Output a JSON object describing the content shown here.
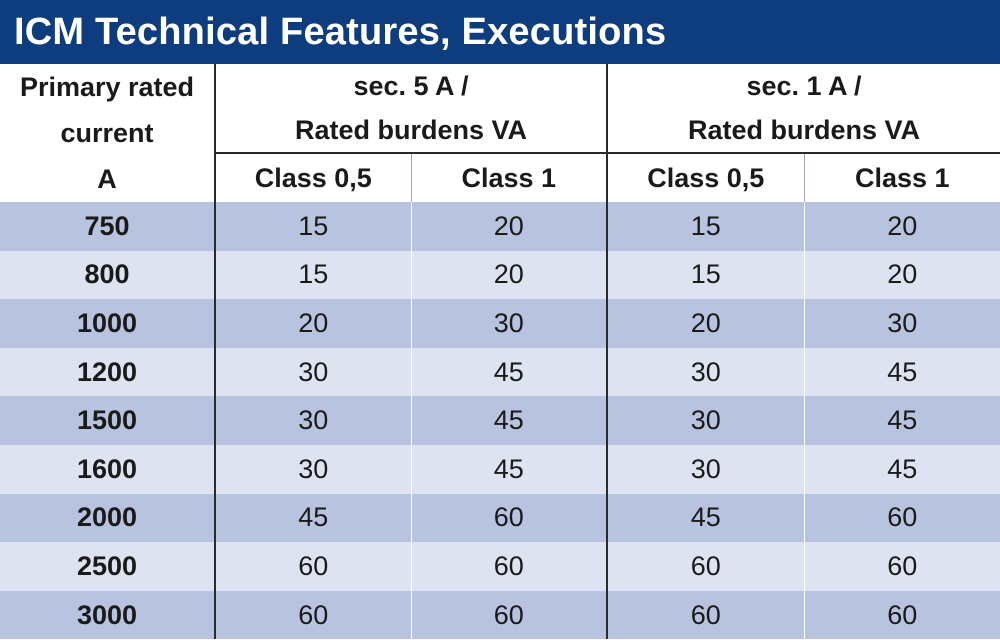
{
  "title": "ICM Technical Features, Executions",
  "header": {
    "primary_line1": "Primary rated",
    "primary_line2": "current",
    "primary_line3": "A",
    "group_5a_line1": "sec. 5 A /",
    "group_5a_line2": "Rated burdens VA",
    "group_1a_line1": "sec. 1 A /",
    "group_1a_line2": "Rated burdens VA",
    "class_a": "Class 0,5",
    "class_b": "Class 1",
    "class_c": "Class 0,5",
    "class_d": "Class 1"
  },
  "rows": [
    {
      "current": "750",
      "v5_c05": "15",
      "v5_c1": "20",
      "v1_c05": "15",
      "v1_c1": "20"
    },
    {
      "current": "800",
      "v5_c05": "15",
      "v5_c1": "20",
      "v1_c05": "15",
      "v1_c1": "20"
    },
    {
      "current": "1000",
      "v5_c05": "20",
      "v5_c1": "30",
      "v1_c05": "20",
      "v1_c1": "30"
    },
    {
      "current": "1200",
      "v5_c05": "30",
      "v5_c1": "45",
      "v1_c05": "30",
      "v1_c1": "45"
    },
    {
      "current": "1500",
      "v5_c05": "30",
      "v5_c1": "45",
      "v1_c05": "30",
      "v1_c1": "45"
    },
    {
      "current": "1600",
      "v5_c05": "30",
      "v5_c1": "45",
      "v1_c05": "30",
      "v1_c1": "45"
    },
    {
      "current": "2000",
      "v5_c05": "45",
      "v5_c1": "60",
      "v1_c05": "45",
      "v1_c1": "60"
    },
    {
      "current": "2500",
      "v5_c05": "60",
      "v5_c1": "60",
      "v1_c05": "60",
      "v1_c1": "60"
    },
    {
      "current": "3000",
      "v5_c05": "60",
      "v5_c1": "60",
      "v1_c05": "60",
      "v1_c1": "60"
    }
  ],
  "colors": {
    "title_bg": "#0d3d7e",
    "row_dark": "#b8c3df",
    "row_light": "#dde3f1"
  }
}
